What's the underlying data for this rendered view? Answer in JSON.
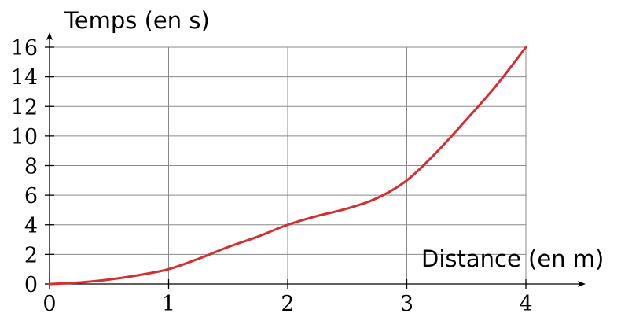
{
  "chart_data": {
    "type": "line",
    "xlabel": "Distance (en m)",
    "ylabel": "Temps (en s)",
    "xlim": [
      0,
      4
    ],
    "ylim": [
      0,
      16
    ],
    "x_ticks": [
      "0",
      "1",
      "2",
      "3",
      "4"
    ],
    "y_ticks": [
      "0",
      "2",
      "4",
      "6",
      "8",
      "10",
      "12",
      "14",
      "16"
    ],
    "grid": true,
    "series": [
      {
        "color": "#d62e2e",
        "x": [
          0,
          0.25,
          0.5,
          0.75,
          1,
          1.25,
          1.5,
          1.75,
          2,
          2.25,
          2.5,
          2.75,
          3,
          3.25,
          3.5,
          3.75,
          4
        ],
        "y": [
          0,
          0.1,
          0.3,
          0.6,
          1,
          1.7,
          2.5,
          3.2,
          4,
          4.6,
          5.1,
          5.8,
          7,
          8.9,
          11.1,
          13.4,
          16
        ]
      }
    ]
  }
}
